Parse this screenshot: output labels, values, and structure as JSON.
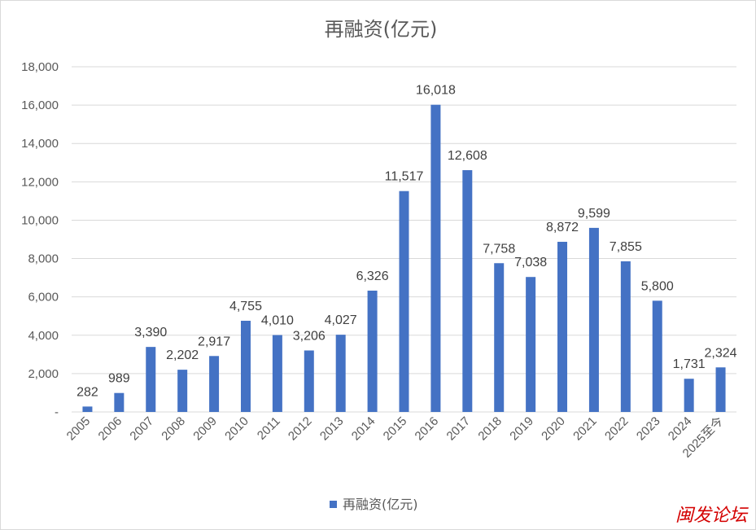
{
  "chart_data": {
    "type": "bar",
    "title": "再融资(亿元)",
    "xlabel": "",
    "ylabel": "",
    "ylim": [
      0,
      18000
    ],
    "yticks": [
      "-",
      "2,000",
      "4,000",
      "6,000",
      "8,000",
      "10,000",
      "12,000",
      "14,000",
      "16,000",
      "18,000"
    ],
    "categories": [
      "2005",
      "2006",
      "2007",
      "2008",
      "2009",
      "2010",
      "2011",
      "2012",
      "2013",
      "2014",
      "2015",
      "2016",
      "2017",
      "2018",
      "2019",
      "2020",
      "2021",
      "2022",
      "2023",
      "2024",
      "2025至今"
    ],
    "series": [
      {
        "name": "再融资(亿元)",
        "color": "#4472c4",
        "values": [
          282,
          989,
          3390,
          2202,
          2917,
          4755,
          4010,
          3206,
          4027,
          6326,
          11517,
          16018,
          12608,
          7758,
          7038,
          8872,
          9599,
          7855,
          5800,
          1731,
          2324
        ],
        "labels": [
          "282",
          "989",
          "3,390",
          "2,202",
          "2,917",
          "4,755",
          "4,010",
          "3,206",
          "4,027",
          "6,326",
          "11,517",
          "16,018",
          "12,608",
          "7,758",
          "7,038",
          "8,872",
          "9,599",
          "7,855",
          "5,800",
          "1,731",
          "2,324"
        ]
      }
    ],
    "legend": "bottom",
    "grid": true
  },
  "watermark": "闽发论坛"
}
